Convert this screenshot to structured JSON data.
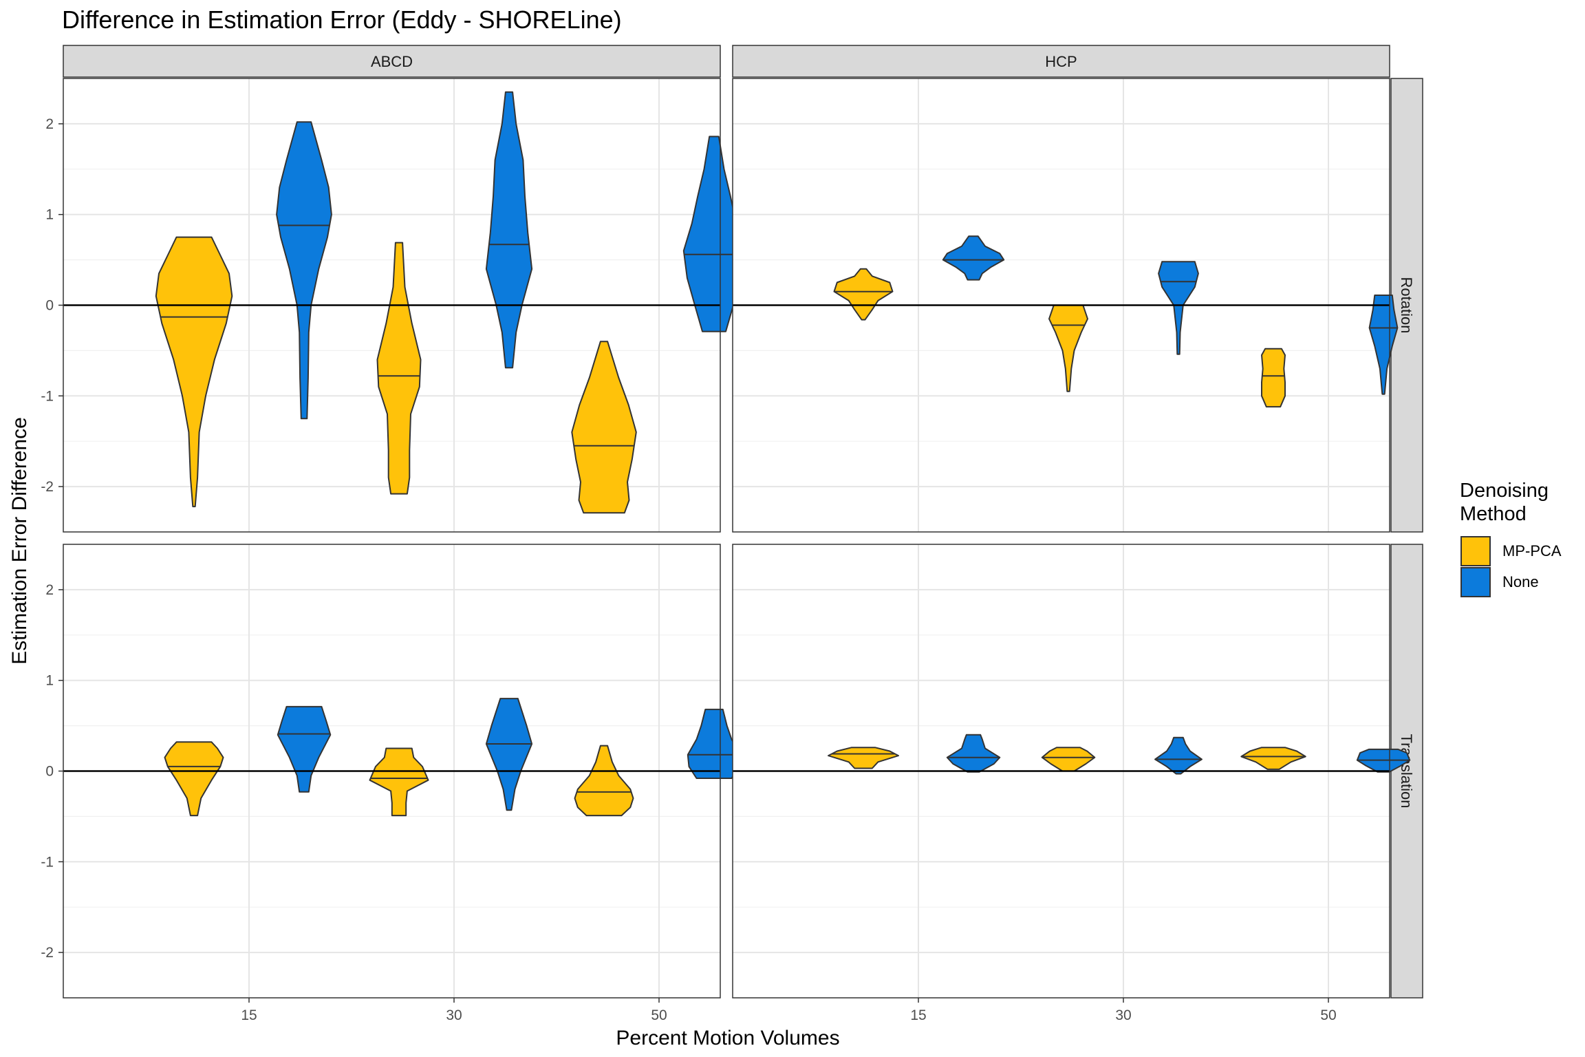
{
  "chart_data": {
    "type": "violin",
    "title": "Difference in Estimation Error (Eddy - SHORELine)",
    "xlabel": "Percent Motion Volumes",
    "ylabel": "Estimation Error Difference",
    "x_ticks": [
      "15",
      "30",
      "50"
    ],
    "y_ticks": [
      2,
      1,
      0,
      -1,
      -2
    ],
    "y_tick_labels": [
      "2",
      "1",
      "0",
      "-1",
      "-2"
    ],
    "ylim": [
      -2.5,
      2.5
    ],
    "reference_line_y": 0,
    "grid": true,
    "col_facets": [
      "ABCD",
      "HCP"
    ],
    "row_facets": [
      "Rotation",
      "Translation"
    ],
    "legend": {
      "title_line1": "Denoising",
      "title_line2": "Method",
      "placement": "right",
      "entries": [
        {
          "name": "MP-PCA",
          "color": "#FFC20A"
        },
        {
          "name": "None",
          "color": "#0C7BDC"
        }
      ]
    },
    "panels": [
      {
        "col": "ABCD",
        "row": "Rotation",
        "violins": [
          {
            "x": "15",
            "method": "MP-PCA",
            "median": -0.13,
            "profile": [
              [
                -2.22,
                0.02
              ],
              [
                -1.9,
                0.06
              ],
              [
                -1.4,
                0.09
              ],
              [
                -1.0,
                0.2
              ],
              [
                -0.6,
                0.35
              ],
              [
                -0.2,
                0.55
              ],
              [
                0.1,
                0.65
              ],
              [
                0.35,
                0.6
              ],
              [
                0.55,
                0.45
              ],
              [
                0.75,
                0.3
              ]
            ]
          },
          {
            "x": "15",
            "method": "None",
            "median": 0.88,
            "profile": [
              [
                -1.25,
                0.05
              ],
              [
                -0.8,
                0.07
              ],
              [
                -0.3,
                0.08
              ],
              [
                0.0,
                0.12
              ],
              [
                0.4,
                0.25
              ],
              [
                0.75,
                0.4
              ],
              [
                1.0,
                0.47
              ],
              [
                1.3,
                0.42
              ],
              [
                1.6,
                0.3
              ],
              [
                2.02,
                0.12
              ]
            ]
          },
          {
            "x": "30",
            "method": "MP-PCA",
            "median": -0.78,
            "profile": [
              [
                -2.08,
                0.14
              ],
              [
                -1.9,
                0.18
              ],
              [
                -1.6,
                0.18
              ],
              [
                -1.2,
                0.2
              ],
              [
                -0.9,
                0.35
              ],
              [
                -0.6,
                0.37
              ],
              [
                -0.2,
                0.22
              ],
              [
                0.2,
                0.1
              ],
              [
                0.69,
                0.06
              ]
            ]
          },
          {
            "x": "30",
            "method": "None",
            "median": 0.67,
            "profile": [
              [
                -0.69,
                0.06
              ],
              [
                -0.3,
                0.12
              ],
              [
                0.0,
                0.22
              ],
              [
                0.4,
                0.39
              ],
              [
                0.8,
                0.32
              ],
              [
                1.2,
                0.27
              ],
              [
                1.6,
                0.24
              ],
              [
                2.0,
                0.12
              ],
              [
                2.35,
                0.06
              ]
            ]
          },
          {
            "x": "50",
            "method": "MP-PCA",
            "median": -1.55,
            "profile": [
              [
                -2.29,
                0.35
              ],
              [
                -2.15,
                0.43
              ],
              [
                -1.95,
                0.4
              ],
              [
                -1.7,
                0.48
              ],
              [
                -1.4,
                0.55
              ],
              [
                -1.1,
                0.42
              ],
              [
                -0.8,
                0.25
              ],
              [
                -0.4,
                0.06
              ]
            ]
          },
          {
            "x": "50",
            "method": "None",
            "median": 0.56,
            "profile": [
              [
                -0.29,
                0.2
              ],
              [
                0.0,
                0.33
              ],
              [
                0.3,
                0.46
              ],
              [
                0.6,
                0.52
              ],
              [
                0.9,
                0.38
              ],
              [
                1.2,
                0.28
              ],
              [
                1.5,
                0.17
              ],
              [
                1.86,
                0.08
              ]
            ]
          }
        ]
      },
      {
        "col": "HCP",
        "row": "Rotation",
        "violins": [
          {
            "x": "15",
            "method": "MP-PCA",
            "median": 0.15,
            "profile": [
              [
                -0.16,
                0.03
              ],
              [
                -0.05,
                0.15
              ],
              [
                0.05,
                0.25
              ],
              [
                0.15,
                0.5
              ],
              [
                0.25,
                0.45
              ],
              [
                0.32,
                0.15
              ],
              [
                0.4,
                0.05
              ]
            ]
          },
          {
            "x": "15",
            "method": "None",
            "median": 0.5,
            "profile": [
              [
                0.28,
                0.1
              ],
              [
                0.35,
                0.15
              ],
              [
                0.42,
                0.3
              ],
              [
                0.5,
                0.52
              ],
              [
                0.57,
                0.45
              ],
              [
                0.65,
                0.2
              ],
              [
                0.76,
                0.08
              ]
            ]
          },
          {
            "x": "30",
            "method": "MP-PCA",
            "median": -0.22,
            "profile": [
              [
                -0.95,
                0.02
              ],
              [
                -0.7,
                0.05
              ],
              [
                -0.5,
                0.1
              ],
              [
                -0.3,
                0.22
              ],
              [
                -0.15,
                0.33
              ],
              [
                0.0,
                0.25
              ]
            ]
          },
          {
            "x": "30",
            "method": "None",
            "median": 0.26,
            "profile": [
              [
                -0.54,
                0.02
              ],
              [
                -0.3,
                0.03
              ],
              [
                0.0,
                0.08
              ],
              [
                0.2,
                0.28
              ],
              [
                0.35,
                0.34
              ],
              [
                0.48,
                0.28
              ]
            ]
          },
          {
            "x": "50",
            "method": "MP-PCA",
            "median": -0.78,
            "profile": [
              [
                -1.12,
                0.12
              ],
              [
                -1.0,
                0.2
              ],
              [
                -0.85,
                0.2
              ],
              [
                -0.7,
                0.18
              ],
              [
                -0.55,
                0.2
              ],
              [
                -0.48,
                0.14
              ]
            ]
          },
          {
            "x": "50",
            "method": "None",
            "median": -0.25,
            "profile": [
              [
                -0.98,
                0.02
              ],
              [
                -0.7,
                0.06
              ],
              [
                -0.45,
                0.15
              ],
              [
                -0.25,
                0.24
              ],
              [
                -0.05,
                0.18
              ],
              [
                0.11,
                0.15
              ]
            ]
          }
        ]
      },
      {
        "col": "ABCD",
        "row": "Translation",
        "violins": [
          {
            "x": "15",
            "method": "MP-PCA",
            "median": 0.05,
            "profile": [
              [
                -0.49,
                0.06
              ],
              [
                -0.3,
                0.12
              ],
              [
                -0.1,
                0.3
              ],
              [
                0.05,
                0.45
              ],
              [
                0.15,
                0.5
              ],
              [
                0.25,
                0.4
              ],
              [
                0.32,
                0.3
              ]
            ]
          },
          {
            "x": "15",
            "method": "None",
            "median": 0.41,
            "profile": [
              [
                -0.23,
                0.08
              ],
              [
                -0.05,
                0.12
              ],
              [
                0.15,
                0.25
              ],
              [
                0.4,
                0.45
              ],
              [
                0.55,
                0.38
              ],
              [
                0.71,
                0.3
              ]
            ]
          },
          {
            "x": "30",
            "method": "MP-PCA",
            "median": -0.08,
            "profile": [
              [
                -0.49,
                0.12
              ],
              [
                -0.35,
                0.12
              ],
              [
                -0.22,
                0.14
              ],
              [
                -0.1,
                0.5
              ],
              [
                0.05,
                0.4
              ],
              [
                0.15,
                0.25
              ],
              [
                0.25,
                0.22
              ]
            ]
          },
          {
            "x": "30",
            "method": "None",
            "median": 0.3,
            "profile": [
              [
                -0.43,
                0.04
              ],
              [
                -0.2,
                0.1
              ],
              [
                0.0,
                0.2
              ],
              [
                0.3,
                0.39
              ],
              [
                0.5,
                0.3
              ],
              [
                0.8,
                0.15
              ]
            ]
          },
          {
            "x": "50",
            "method": "MP-PCA",
            "median": -0.23,
            "profile": [
              [
                -0.49,
                0.3
              ],
              [
                -0.4,
                0.45
              ],
              [
                -0.3,
                0.5
              ],
              [
                -0.2,
                0.45
              ],
              [
                -0.05,
                0.25
              ],
              [
                0.1,
                0.14
              ],
              [
                0.28,
                0.06
              ]
            ]
          },
          {
            "x": "50",
            "method": "None",
            "median": 0.18,
            "profile": [
              [
                -0.08,
                0.3
              ],
              [
                0.05,
                0.43
              ],
              [
                0.18,
                0.45
              ],
              [
                0.35,
                0.3
              ],
              [
                0.5,
                0.22
              ],
              [
                0.68,
                0.15
              ]
            ]
          }
        ]
      },
      {
        "col": "HCP",
        "row": "Translation",
        "violins": [
          {
            "x": "15",
            "method": "MP-PCA",
            "median": 0.19,
            "profile": [
              [
                0.03,
                0.15
              ],
              [
                0.1,
                0.25
              ],
              [
                0.17,
                0.6
              ],
              [
                0.22,
                0.45
              ],
              [
                0.26,
                0.2
              ]
            ]
          },
          {
            "x": "15",
            "method": "None",
            "median": 0.15,
            "profile": [
              [
                -0.01,
                0.1
              ],
              [
                0.08,
                0.35
              ],
              [
                0.15,
                0.45
              ],
              [
                0.25,
                0.2
              ],
              [
                0.35,
                0.15
              ],
              [
                0.4,
                0.12
              ]
            ]
          },
          {
            "x": "30",
            "method": "MP-PCA",
            "median": 0.15,
            "profile": [
              [
                0.0,
                0.1
              ],
              [
                0.08,
                0.3
              ],
              [
                0.15,
                0.45
              ],
              [
                0.22,
                0.32
              ],
              [
                0.26,
                0.2
              ]
            ]
          },
          {
            "x": "30",
            "method": "None",
            "median": 0.13,
            "profile": [
              [
                -0.03,
                0.04
              ],
              [
                0.05,
                0.2
              ],
              [
                0.13,
                0.4
              ],
              [
                0.22,
                0.2
              ],
              [
                0.3,
                0.12
              ],
              [
                0.37,
                0.08
              ]
            ]
          },
          {
            "x": "50",
            "method": "MP-PCA",
            "median": 0.16,
            "profile": [
              [
                0.02,
                0.1
              ],
              [
                0.1,
                0.3
              ],
              [
                0.16,
                0.55
              ],
              [
                0.22,
                0.4
              ],
              [
                0.26,
                0.2
              ]
            ]
          },
          {
            "x": "50",
            "method": "None",
            "median": 0.12,
            "profile": [
              [
                -0.01,
                0.1
              ],
              [
                0.06,
                0.3
              ],
              [
                0.12,
                0.45
              ],
              [
                0.2,
                0.4
              ],
              [
                0.24,
                0.25
              ]
            ]
          }
        ]
      }
    ]
  }
}
